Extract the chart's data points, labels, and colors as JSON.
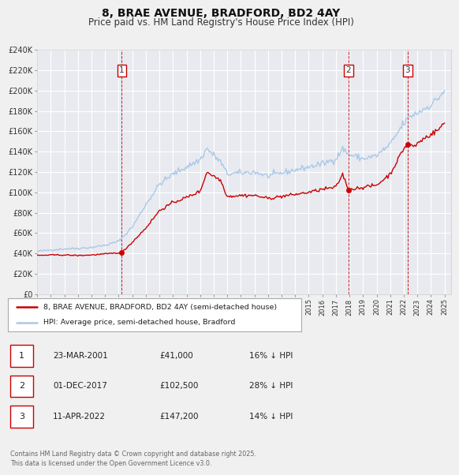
{
  "title": "8, BRAE AVENUE, BRADFORD, BD2 4AY",
  "subtitle": "Price paid vs. HM Land Registry's House Price Index (HPI)",
  "title_fontsize": 10,
  "subtitle_fontsize": 8.5,
  "background_color": "#f0f0f0",
  "plot_bg_color": "#e8eaf0",
  "grid_color": "#ffffff",
  "hpi_color": "#aac8e8",
  "price_color": "#cc0000",
  "sale_marker_color": "#cc0000",
  "vline_color": "#cc0000",
  "ylim": [
    0,
    240000
  ],
  "yticks": [
    0,
    20000,
    40000,
    60000,
    80000,
    100000,
    120000,
    140000,
    160000,
    180000,
    200000,
    220000,
    240000
  ],
  "sales": [
    {
      "date_num": 2001.23,
      "price": 41000,
      "label": "1"
    },
    {
      "date_num": 2017.92,
      "price": 102500,
      "label": "2"
    },
    {
      "date_num": 2022.28,
      "price": 147200,
      "label": "3"
    }
  ],
  "sale_labels": [
    {
      "num": "1",
      "date": "23-MAR-2001",
      "price": "£41,000",
      "pct": "16% ↓ HPI"
    },
    {
      "num": "2",
      "date": "01-DEC-2017",
      "price": "£102,500",
      "pct": "28% ↓ HPI"
    },
    {
      "num": "3",
      "date": "11-APR-2022",
      "price": "£147,200",
      "pct": "14% ↓ HPI"
    }
  ],
  "legend_entries": [
    "8, BRAE AVENUE, BRADFORD, BD2 4AY (semi-detached house)",
    "HPI: Average price, semi-detached house, Bradford"
  ],
  "footer": "Contains HM Land Registry data © Crown copyright and database right 2025.\nThis data is licensed under the Open Government Licence v3.0.",
  "xmin": 1995,
  "xmax": 2025.5
}
